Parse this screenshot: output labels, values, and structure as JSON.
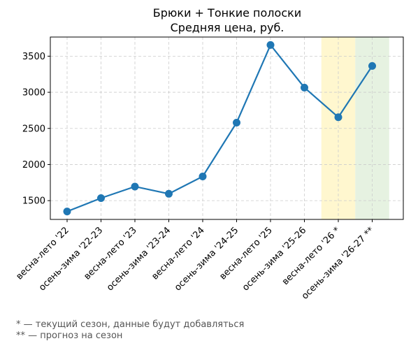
{
  "chart_data": {
    "type": "line",
    "title": "Брюки + Тонкие полоски",
    "subtitle": "Средняя цена, руб.",
    "categories": [
      "весна-лето '22",
      "осень-зима '22-23",
      "весна-лето '23",
      "осень-зима '23-24",
      "весна-лето '24",
      "осень-зима '24-25",
      "весна-лето '25",
      "осень-зима '25-26",
      "весна-лето '26 *",
      "осень-зима '26-27 **"
    ],
    "series": [
      {
        "values": [
          1350,
          1535,
          1695,
          1595,
          1835,
          2580,
          3655,
          3065,
          2655,
          3365
        ]
      }
    ],
    "y_ticks": [
      1500,
      2000,
      2500,
      3000,
      3500
    ],
    "ylim": [
      1240,
      3765
    ],
    "grid": true,
    "colors": {
      "line": "#1f77b4",
      "current_season_band": "#fff7cf",
      "forecast_band": "#e6f2e1"
    },
    "highlight": {
      "current_index": 8,
      "forecast_index": 9
    }
  },
  "notes": {
    "current": "* — текущий сезон, данные будут добавляться",
    "forecast": "** — прогноз на сезон"
  }
}
